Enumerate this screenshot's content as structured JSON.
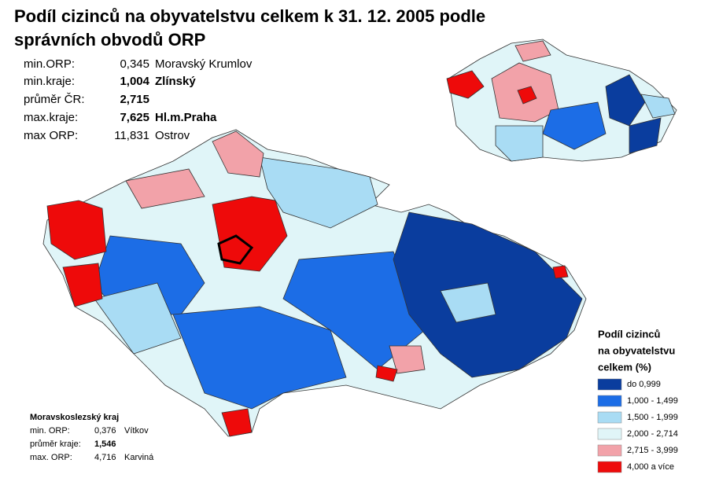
{
  "title_lines": [
    "Podíl cizinců na obyvatelstvu celkem k 31. 12. 2005 podle",
    "správních obvodů ORP"
  ],
  "stats": [
    {
      "label": "min.ORP:",
      "value": "0,345",
      "name": "Moravský Krumlov"
    },
    {
      "label": "min.kraje:",
      "value": "1,004",
      "name": "Zlínský"
    },
    {
      "label": "průměr ČR:",
      "value": "2,715"
    },
    {
      "label": "max.kraje:",
      "value": "7,625",
      "name": "Hl.m.Praha"
    },
    {
      "label": "max ORP:",
      "value": "11,831",
      "name": "Ostrov"
    }
  ],
  "region_box": {
    "title": "Moravskoslezský kraj",
    "rows": [
      {
        "label": "min. ORP:",
        "value": "0,376",
        "name": "Vítkov"
      },
      {
        "label": "průměr kraje:",
        "value": "1,546"
      },
      {
        "label": "max. ORP:",
        "value": "4,716",
        "name": "Karviná"
      }
    ]
  },
  "legend": {
    "title_lines": [
      "Podíl cizinců",
      "na obyvatelstvu",
      "celkem (%)"
    ],
    "items": [
      {
        "label": "do 0,999",
        "color": "#0a3d9e"
      },
      {
        "label": "1,000 - 1,499",
        "color": "#1c6de6"
      },
      {
        "label": "1,500 - 1,999",
        "color": "#a9dcf4"
      },
      {
        "label": "2,000 - 2,714",
        "color": "#e0f5f8"
      },
      {
        "label": "2,715 - 3,999",
        "color": "#f2a2a9"
      },
      {
        "label": "4,000 a více",
        "color": "#ee0a0a"
      }
    ]
  }
}
